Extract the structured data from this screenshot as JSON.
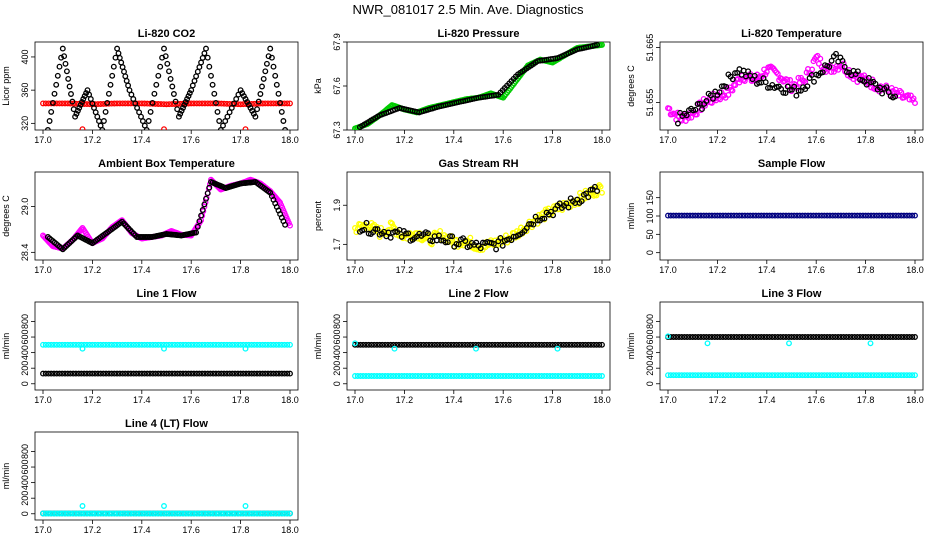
{
  "title": "NWR_081017  2.5 Min. Ave. Diagnostics",
  "chart_data": [
    {
      "type": "scatter",
      "title": "Li-820 CO2",
      "ylabel": "Licor ppm",
      "xlim": [
        17.0,
        18.0
      ],
      "ylim": [
        312,
        418
      ],
      "x_ticks": [
        "17.0",
        "17.2",
        "17.4",
        "17.6",
        "17.8",
        "18.0"
      ],
      "y_ticks": [
        320,
        360,
        400
      ],
      "colors": {
        "primary": "#ff0000",
        "secondary": "#000000"
      },
      "series": [
        {
          "values_x": [
            17.0,
            17.1,
            17.2,
            17.3,
            17.4,
            17.5,
            17.6,
            17.7,
            17.8,
            17.9,
            18.0
          ],
          "values_y": [
            344,
            344,
            343,
            344,
            344,
            343,
            344,
            344,
            343,
            344,
            344
          ],
          "color": "#ff0000"
        },
        {
          "values_x": [
            17.02,
            17.08,
            17.13,
            17.18,
            17.24,
            17.3,
            17.35,
            17.42,
            17.49,
            17.55,
            17.6,
            17.66,
            17.72,
            17.8,
            17.86,
            17.92,
            17.98
          ],
          "values_y": [
            312,
            410,
            328,
            360,
            312,
            410,
            360,
            312,
            410,
            328,
            360,
            410,
            312,
            360,
            328,
            410,
            312
          ],
          "color": "#000000"
        },
        {
          "values_x": [
            17.16,
            17.49,
            17.82
          ],
          "values_y": [
            313,
            313,
            313
          ],
          "color": "#ff0000"
        }
      ]
    },
    {
      "type": "scatter",
      "title": "Li-820 Pressure",
      "ylabel": "kPa",
      "xlim": [
        17.0,
        18.0
      ],
      "ylim": [
        67.3,
        67.9
      ],
      "x_ticks": [
        "17.0",
        "17.2",
        "17.4",
        "17.6",
        "17.8",
        "18.0"
      ],
      "y_ticks": [
        "67.3",
        "67.6",
        "67.9"
      ],
      "series": [
        {
          "values_x": [
            17.0,
            17.05,
            17.1,
            17.15,
            17.2,
            17.25,
            17.3,
            17.35,
            17.4,
            17.45,
            17.5,
            17.55,
            17.6,
            17.65,
            17.7,
            17.75,
            17.8,
            17.85,
            17.9,
            17.95,
            18.0
          ],
          "values_y": [
            67.31,
            67.34,
            67.4,
            67.47,
            67.44,
            67.42,
            67.45,
            67.47,
            67.49,
            67.51,
            67.52,
            67.55,
            67.52,
            67.63,
            67.74,
            67.78,
            67.76,
            67.81,
            67.86,
            67.87,
            67.88
          ],
          "color": "#00cc00"
        },
        {
          "values_x": [
            17.02,
            17.1,
            17.18,
            17.26,
            17.34,
            17.42,
            17.5,
            17.58,
            17.66,
            17.74,
            17.82,
            17.9,
            17.98
          ],
          "values_y": [
            67.32,
            67.4,
            67.45,
            67.42,
            67.46,
            67.49,
            67.52,
            67.54,
            67.68,
            67.77,
            67.79,
            67.85,
            67.88
          ],
          "color": "#000000"
        }
      ]
    },
    {
      "type": "scatter",
      "title": "Li-820 Temperature",
      "ylabel": "degrees C",
      "xlim": [
        17.0,
        18.0
      ],
      "ylim": [
        51.65,
        51.666
      ],
      "x_ticks": [
        "17.0",
        "17.2",
        "17.4",
        "17.6",
        "17.8",
        "18.0"
      ],
      "y_ticks": [
        "51.655",
        "51.665"
      ],
      "series": [
        {
          "values_x": [
            17.0,
            17.05,
            17.1,
            17.15,
            17.2,
            17.25,
            17.3,
            17.35,
            17.4,
            17.45,
            17.5,
            17.55,
            17.6,
            17.65,
            17.7,
            17.75,
            17.8,
            17.85,
            17.9,
            17.95,
            18.0
          ],
          "values_y": [
            51.654,
            51.652,
            51.653,
            51.655,
            51.656,
            51.657,
            51.66,
            51.659,
            51.661,
            51.66,
            51.658,
            51.659,
            51.663,
            51.661,
            51.662,
            51.66,
            51.659,
            51.658,
            51.657,
            51.656,
            51.655
          ],
          "color": "#ff00ff"
        },
        {
          "values_x": [
            17.04,
            17.12,
            17.2,
            17.28,
            17.36,
            17.44,
            17.52,
            17.6,
            17.68,
            17.76,
            17.84,
            17.92
          ],
          "values_y": [
            51.652,
            51.654,
            51.657,
            51.661,
            51.659,
            51.658,
            51.657,
            51.66,
            51.663,
            51.66,
            51.658,
            51.656
          ],
          "color": "#000000"
        }
      ]
    },
    {
      "type": "scatter",
      "title": "Ambient Box Temperature",
      "ylabel": "degrees C",
      "xlim": [
        17.0,
        18.0
      ],
      "ylim": [
        28.3,
        29.45
      ],
      "x_ticks": [
        "17.0",
        "17.2",
        "17.4",
        "17.6",
        "17.8",
        "18.0"
      ],
      "y_ticks": [
        "28.4",
        "29.0"
      ],
      "series": [
        {
          "values_x": [
            17.0,
            17.04,
            17.08,
            17.12,
            17.16,
            17.2,
            17.24,
            17.28,
            17.32,
            17.36,
            17.4,
            17.44,
            17.48,
            17.52,
            17.56,
            17.6,
            17.64,
            17.68,
            17.72,
            17.76,
            17.8,
            17.84,
            17.88,
            17.92,
            17.96,
            18.0
          ],
          "values_y": [
            28.62,
            28.48,
            28.45,
            28.56,
            28.72,
            28.52,
            28.58,
            28.73,
            28.82,
            28.65,
            28.58,
            28.6,
            28.62,
            28.68,
            28.63,
            28.62,
            28.82,
            29.35,
            29.22,
            29.27,
            29.3,
            29.35,
            29.3,
            29.2,
            29.05,
            28.75
          ],
          "color": "#ff00ff"
        },
        {
          "values_x": [
            17.02,
            17.08,
            17.14,
            17.2,
            17.26,
            17.32,
            17.38,
            17.44,
            17.5,
            17.56,
            17.62,
            17.68,
            17.74,
            17.8,
            17.86,
            17.92,
            17.98
          ],
          "values_y": [
            28.6,
            28.44,
            28.62,
            28.52,
            28.66,
            28.8,
            28.6,
            28.6,
            28.64,
            28.62,
            28.66,
            29.32,
            29.24,
            29.3,
            29.32,
            29.18,
            28.76
          ],
          "color": "#000000"
        }
      ]
    },
    {
      "type": "scatter",
      "title": "Gas Stream RH",
      "ylabel": "percent",
      "xlim": [
        17.0,
        18.0
      ],
      "ylim": [
        1.62,
        2.07
      ],
      "x_ticks": [
        "17.0",
        "17.2",
        "17.4",
        "17.6",
        "17.8",
        "18.0"
      ],
      "y_ticks": [
        "1.7",
        "1.9"
      ],
      "series": [
        {
          "values_x": [
            17.0,
            17.05,
            17.1,
            17.15,
            17.2,
            17.25,
            17.3,
            17.35,
            17.4,
            17.45,
            17.5,
            17.55,
            17.6,
            17.65,
            17.7,
            17.75,
            17.8,
            17.85,
            17.9,
            17.95,
            18.0
          ],
          "values_y": [
            1.78,
            1.8,
            1.76,
            1.79,
            1.74,
            1.76,
            1.72,
            1.75,
            1.71,
            1.72,
            1.69,
            1.7,
            1.72,
            1.75,
            1.8,
            1.84,
            1.87,
            1.9,
            1.93,
            1.96,
            1.99
          ],
          "color": "#ffff00"
        },
        {
          "values_x": [
            17.02,
            17.1,
            17.18,
            17.26,
            17.34,
            17.42,
            17.5,
            17.58,
            17.66,
            17.74,
            17.82,
            17.9,
            17.98
          ],
          "values_y": [
            1.79,
            1.77,
            1.75,
            1.74,
            1.73,
            1.71,
            1.69,
            1.7,
            1.76,
            1.84,
            1.88,
            1.93,
            1.98
          ],
          "color": "#000000"
        }
      ]
    },
    {
      "type": "scatter",
      "title": "Sample Flow",
      "ylabel": "ml/min",
      "xlim": [
        17.0,
        18.0
      ],
      "ylim": [
        -20,
        220
      ],
      "x_ticks": [
        "17.0",
        "17.2",
        "17.4",
        "17.6",
        "17.8",
        "18.0"
      ],
      "y_ticks": [
        0,
        50,
        100,
        150
      ],
      "series": [
        {
          "values_x": [
            17.0,
            17.1,
            17.2,
            17.3,
            17.4,
            17.5,
            17.6,
            17.7,
            17.8,
            17.9,
            18.0
          ],
          "values_y": [
            101,
            101,
            101,
            101,
            101,
            101,
            101,
            101,
            101,
            101,
            101
          ],
          "color": "#000080"
        }
      ]
    },
    {
      "type": "scatter",
      "title": "Line 1 Flow",
      "ylabel": "ml/min",
      "xlim": [
        17.0,
        18.0
      ],
      "ylim": [
        -80,
        1050
      ],
      "x_ticks": [
        "17.0",
        "17.2",
        "17.4",
        "17.6",
        "17.8",
        "18.0"
      ],
      "y_ticks": [
        0,
        200,
        400,
        600,
        800
      ],
      "series": [
        {
          "values_x": [
            17.0,
            17.1,
            17.2,
            17.3,
            17.4,
            17.5,
            17.6,
            17.7,
            17.8,
            17.9,
            18.0
          ],
          "values_y": [
            500,
            500,
            500,
            500,
            500,
            500,
            500,
            500,
            500,
            500,
            500
          ],
          "color": "#00ffff"
        },
        {
          "values_x": [
            17.0,
            17.1,
            17.2,
            17.3,
            17.4,
            17.5,
            17.6,
            17.7,
            17.8,
            17.9,
            18.0
          ],
          "values_y": [
            130,
            130,
            130,
            130,
            130,
            130,
            130,
            130,
            130,
            130,
            130
          ],
          "color": "#000000"
        },
        {
          "values_x": [
            17.16,
            17.49,
            17.82
          ],
          "values_y": [
            450,
            450,
            450
          ],
          "color": "#00ffff"
        }
      ]
    },
    {
      "type": "scatter",
      "title": "Line 2 Flow",
      "ylabel": "ml/min",
      "xlim": [
        17.0,
        18.0
      ],
      "ylim": [
        -80,
        1050
      ],
      "x_ticks": [
        "17.0",
        "17.2",
        "17.4",
        "17.6",
        "17.8",
        "18.0"
      ],
      "y_ticks": [
        0,
        200,
        400,
        600,
        800
      ],
      "series": [
        {
          "values_x": [
            17.0,
            17.1,
            17.2,
            17.3,
            17.4,
            17.5,
            17.6,
            17.7,
            17.8,
            17.9,
            18.0
          ],
          "values_y": [
            500,
            500,
            500,
            500,
            500,
            500,
            500,
            500,
            500,
            500,
            500
          ],
          "color": "#000000"
        },
        {
          "values_x": [
            17.0,
            17.1,
            17.2,
            17.3,
            17.4,
            17.5,
            17.6,
            17.7,
            17.8,
            17.9,
            18.0
          ],
          "values_y": [
            100,
            100,
            100,
            100,
            100,
            100,
            100,
            100,
            100,
            100,
            100
          ],
          "color": "#00ffff"
        },
        {
          "values_x": [
            17.0,
            17.16,
            17.49,
            17.82
          ],
          "values_y": [
            520,
            450,
            450,
            450
          ],
          "color": "#00ffff"
        }
      ]
    },
    {
      "type": "scatter",
      "title": "Line 3 Flow",
      "ylabel": "ml/min",
      "xlim": [
        17.0,
        18.0
      ],
      "ylim": [
        -80,
        1050
      ],
      "x_ticks": [
        "17.0",
        "17.2",
        "17.4",
        "17.6",
        "17.8",
        "18.0"
      ],
      "y_ticks": [
        0,
        200,
        400,
        600,
        800
      ],
      "series": [
        {
          "values_x": [
            17.0,
            17.1,
            17.2,
            17.3,
            17.4,
            17.5,
            17.6,
            17.7,
            17.8,
            17.9,
            18.0
          ],
          "values_y": [
            600,
            600,
            600,
            600,
            600,
            600,
            600,
            600,
            600,
            600,
            600
          ],
          "color": "#000000"
        },
        {
          "values_x": [
            17.0,
            17.1,
            17.2,
            17.3,
            17.4,
            17.5,
            17.6,
            17.7,
            17.8,
            17.9,
            18.0
          ],
          "values_y": [
            110,
            110,
            110,
            110,
            110,
            110,
            110,
            110,
            110,
            110,
            110
          ],
          "color": "#00ffff"
        },
        {
          "values_x": [
            17.0,
            17.16,
            17.49,
            17.82
          ],
          "values_y": [
            610,
            520,
            520,
            520
          ],
          "color": "#00ffff"
        }
      ]
    },
    {
      "type": "scatter",
      "title": "Line 4 (LT) Flow",
      "ylabel": "ml/min",
      "xlim": [
        17.0,
        18.0
      ],
      "ylim": [
        -80,
        1050
      ],
      "x_ticks": [
        "17.0",
        "17.2",
        "17.4",
        "17.6",
        "17.8",
        "18.0"
      ],
      "y_ticks": [
        0,
        200,
        400,
        600,
        800
      ],
      "series": [
        {
          "values_x": [
            17.0,
            17.1,
            17.2,
            17.3,
            17.4,
            17.5,
            17.6,
            17.7,
            17.8,
            17.9,
            18.0
          ],
          "values_y": [
            5,
            5,
            5,
            5,
            5,
            5,
            5,
            5,
            5,
            5,
            5
          ],
          "color": "#000000"
        },
        {
          "values_x": [
            17.0,
            17.1,
            17.2,
            17.3,
            17.4,
            17.5,
            17.6,
            17.7,
            17.8,
            17.9,
            18.0
          ],
          "values_y": [
            3,
            3,
            3,
            3,
            3,
            3,
            3,
            3,
            3,
            3,
            3
          ],
          "color": "#00ffff"
        },
        {
          "values_x": [
            17.16,
            17.49,
            17.82
          ],
          "values_y": [
            100,
            100,
            100
          ],
          "color": "#00ffff"
        }
      ]
    }
  ]
}
